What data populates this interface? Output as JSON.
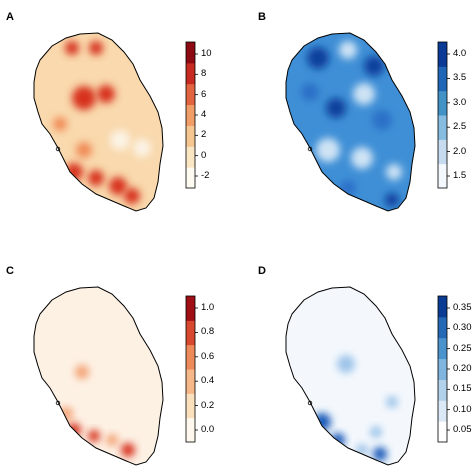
{
  "panels": [
    {
      "label": "A",
      "colorbar": {
        "ticks": [
          "10",
          "8",
          "6",
          "4",
          "2",
          "0",
          "-2"
        ],
        "colors": [
          "#fdfaf2",
          "#fbe6c4",
          "#f6c691",
          "#f09d67",
          "#e2653f",
          "#c62a20",
          "#8e0a12"
        ]
      },
      "map_colors": {
        "base": "#f9d9ad",
        "hot": "#d7301f",
        "hot2": "#f08a57",
        "cool": "#fbf3e6"
      }
    },
    {
      "label": "B",
      "colorbar": {
        "ticks": [
          "4.0",
          "3.5",
          "3.0",
          "2.5",
          "2.0",
          "1.5"
        ],
        "colors": [
          "#f3f9fe",
          "#c6dbef",
          "#85bce0",
          "#4292c6",
          "#1f66b6",
          "#0a3a96"
        ]
      },
      "map_colors": {
        "base": "#3f8fd6",
        "hot": "#0b3f9c",
        "hot2": "#2a70c8",
        "cool": "#cfe4f5"
      }
    },
    {
      "label": "C",
      "colorbar": {
        "ticks": [
          "1.0",
          "0.8",
          "0.6",
          "0.4",
          "0.2",
          "0.0"
        ],
        "colors": [
          "#fff8ee",
          "#fbe0bd",
          "#f6b888",
          "#ee8a5a",
          "#d8482e",
          "#a00f15"
        ]
      },
      "map_colors": {
        "base": "#fdf1e4",
        "hot": "#d7301f",
        "hot2": "#f3a274",
        "cool": "#fff8f0"
      }
    },
    {
      "label": "D",
      "colorbar": {
        "ticks": [
          "0.35",
          "0.30",
          "0.25",
          "0.20",
          "0.15",
          "0.10",
          "0.05"
        ],
        "colors": [
          "#ffffff",
          "#dbe9f6",
          "#b2d2ec",
          "#7fb5df",
          "#4a93cd",
          "#2469b5",
          "#0b3c93"
        ]
      },
      "map_colors": {
        "base": "#f4f8fd",
        "hot": "#1558b8",
        "hot2": "#9cc3e8",
        "cool": "#ffffff"
      }
    }
  ],
  "map_elements": {
    "island_marker": "small-island-dot"
  }
}
